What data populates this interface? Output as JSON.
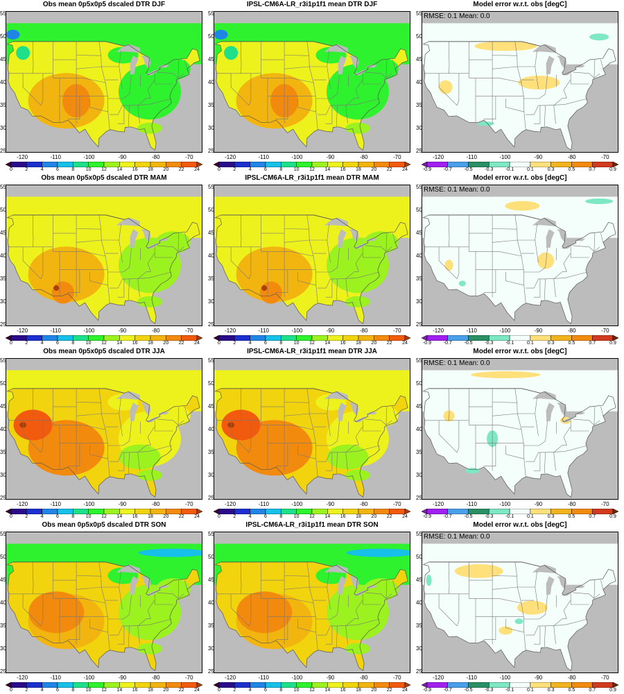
{
  "panels": [
    {
      "title": "Obs mean 0p5x0p5 dscaled DTR DJF",
      "kind": "mean",
      "season": "DJF"
    },
    {
      "title": "IPSL-CM6A-LR_r3i1p1f1 mean DTR DJF",
      "kind": "mean",
      "season": "DJF"
    },
    {
      "title": "Model error w.r.t. obs [degC]",
      "kind": "error",
      "season": "DJF",
      "stat": "RMSE: 0.1  Mean: 0.0"
    },
    {
      "title": "Obs mean 0p5x0p5 dscaled DTR MAM",
      "kind": "mean",
      "season": "MAM"
    },
    {
      "title": "IPSL-CM6A-LR_r3i1p1f1 mean DTR MAM",
      "kind": "mean",
      "season": "MAM"
    },
    {
      "title": "Model error w.r.t. obs [degC]",
      "kind": "error",
      "season": "MAM",
      "stat": "RMSE: 0.1  Mean: 0.0"
    },
    {
      "title": "Obs mean 0p5x0p5 dscaled DTR JJA",
      "kind": "mean",
      "season": "JJA"
    },
    {
      "title": "IPSL-CM6A-LR_r3i1p1f1 mean DTR JJA",
      "kind": "mean",
      "season": "JJA"
    },
    {
      "title": "Model error w.r.t. obs [degC]",
      "kind": "error",
      "season": "JJA",
      "stat": "RMSE: 0.1  Mean: 0.0"
    },
    {
      "title": "Obs mean 0p5x0p5 dscaled DTR SON",
      "kind": "mean",
      "season": "SON"
    },
    {
      "title": "IPSL-CM6A-LR_r3i1p1f1 mean DTR SON",
      "kind": "mean",
      "season": "SON"
    },
    {
      "title": "Model error w.r.t. obs [degC]",
      "kind": "error",
      "season": "SON",
      "stat": "RMSE: 0.1  Mean: 0.0"
    }
  ],
  "axes": {
    "lon_ticks": [
      "-120",
      "-110",
      "-100",
      "-90",
      "-80",
      "-70"
    ],
    "lat_ticks": [
      "55",
      "50",
      "45",
      "40",
      "35",
      "30",
      "25"
    ],
    "lon_range": [
      -125,
      -66
    ],
    "lat_range": [
      24.5,
      55.5
    ]
  },
  "colorbars": {
    "mean": {
      "labels": [
        "0",
        "2",
        "4",
        "6",
        "8",
        "10",
        "12",
        "14",
        "16",
        "18",
        "20",
        "22",
        "24"
      ],
      "colors": [
        "#3b0030",
        "#2a0c8a",
        "#1c2fcf",
        "#1f86e8",
        "#17c0e8",
        "#1fe08a",
        "#2ef22e",
        "#9cf21e",
        "#eef21c",
        "#f2d40e",
        "#f2b40e",
        "#f28a0e",
        "#f25a0e",
        "#a8400a"
      ]
    },
    "error": {
      "labels": [
        "-0.9",
        "-0.7",
        "-0.5",
        "-0.3",
        "-0.1",
        "0.1",
        "0.3",
        "0.5",
        "0.7",
        "0.9"
      ],
      "colors": [
        "#7a1fa8",
        "#a020f0",
        "#4aa0e8",
        "#2a8f64",
        "#7ee8c4",
        "#f4fffb",
        "#ffe07a",
        "#f2b41e",
        "#f28a0e",
        "#d03a1e",
        "#6a2a0a"
      ]
    }
  },
  "colors": {
    "missing": "#bcbcbc",
    "border_lines": "#777777"
  }
}
